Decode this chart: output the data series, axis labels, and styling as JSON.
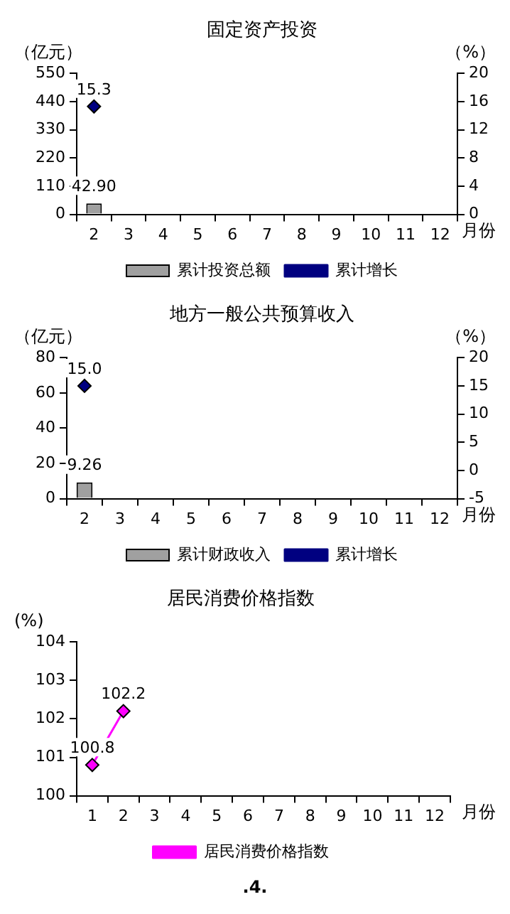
{
  "chart_data": [
    {
      "type": "bar",
      "title": "固定资产投资",
      "ylabel": "（亿元）",
      "y2label": "（%）",
      "xlabel": "月份",
      "categories": [
        "2",
        "3",
        "4",
        "5",
        "6",
        "7",
        "8",
        "9",
        "10",
        "11",
        "12"
      ],
      "series": [
        {
          "name": "累计投资总额",
          "type": "bar",
          "color": "#a0a0a0",
          "values": [
            42.9,
            null,
            null,
            null,
            null,
            null,
            null,
            null,
            null,
            null,
            null
          ],
          "value_labels": [
            "42.90",
            null,
            null,
            null,
            null,
            null,
            null,
            null,
            null,
            null,
            null
          ]
        },
        {
          "name": "累计增长",
          "type": "line",
          "axis": "y2",
          "color": "#000080",
          "marker": "diamond",
          "values": [
            15.3,
            null,
            null,
            null,
            null,
            null,
            null,
            null,
            null,
            null,
            null
          ],
          "value_labels": [
            "15.3",
            null,
            null,
            null,
            null,
            null,
            null,
            null,
            null,
            null,
            null
          ]
        }
      ],
      "ylim": [
        0,
        550
      ],
      "yticks": [
        0,
        110,
        220,
        330,
        440,
        550
      ],
      "y2lim": [
        0,
        20
      ],
      "y2ticks": [
        0,
        4,
        8,
        12,
        16,
        20
      ],
      "grid": false,
      "legend": "bottom"
    },
    {
      "type": "bar",
      "title": "地方一般公共预算收入",
      "ylabel": "（亿元）",
      "y2label": "（%）",
      "xlabel": "月份",
      "categories": [
        "2",
        "3",
        "4",
        "5",
        "6",
        "7",
        "8",
        "9",
        "10",
        "11",
        "12"
      ],
      "series": [
        {
          "name": "累计财政收入",
          "type": "bar",
          "color": "#a0a0a0",
          "values": [
            9.26,
            null,
            null,
            null,
            null,
            null,
            null,
            null,
            null,
            null,
            null
          ],
          "value_labels": [
            "9.26",
            null,
            null,
            null,
            null,
            null,
            null,
            null,
            null,
            null,
            null
          ]
        },
        {
          "name": "累计增长",
          "type": "line",
          "axis": "y2",
          "color": "#000080",
          "marker": "diamond",
          "values": [
            15.0,
            null,
            null,
            null,
            null,
            null,
            null,
            null,
            null,
            null,
            null
          ],
          "value_labels": [
            "15.0",
            null,
            null,
            null,
            null,
            null,
            null,
            null,
            null,
            null,
            null
          ]
        }
      ],
      "ylim": [
        0,
        80
      ],
      "yticks": [
        0,
        20,
        40,
        60,
        80
      ],
      "y2lim": [
        -5,
        20
      ],
      "y2ticks": [
        -5,
        0,
        5,
        10,
        15,
        20
      ],
      "grid": false,
      "legend": "bottom"
    },
    {
      "type": "line",
      "title": "居民消费价格指数",
      "ylabel": "(%)",
      "xlabel": "月份",
      "categories": [
        "1",
        "2",
        "3",
        "4",
        "5",
        "6",
        "7",
        "8",
        "9",
        "10",
        "11",
        "12"
      ],
      "series": [
        {
          "name": "居民消费价格指数",
          "color": "#ff00ff",
          "values": [
            100.8,
            102.2,
            null,
            null,
            null,
            null,
            null,
            null,
            null,
            null,
            null,
            null
          ]
        }
      ],
      "ylim": [
        100,
        104
      ],
      "yticks": [
        100,
        101,
        102,
        103,
        104
      ],
      "marker": "diamond",
      "data_labels": true,
      "grid": false,
      "legend": "bottom",
      "annotations": [
        ".4."
      ]
    }
  ]
}
